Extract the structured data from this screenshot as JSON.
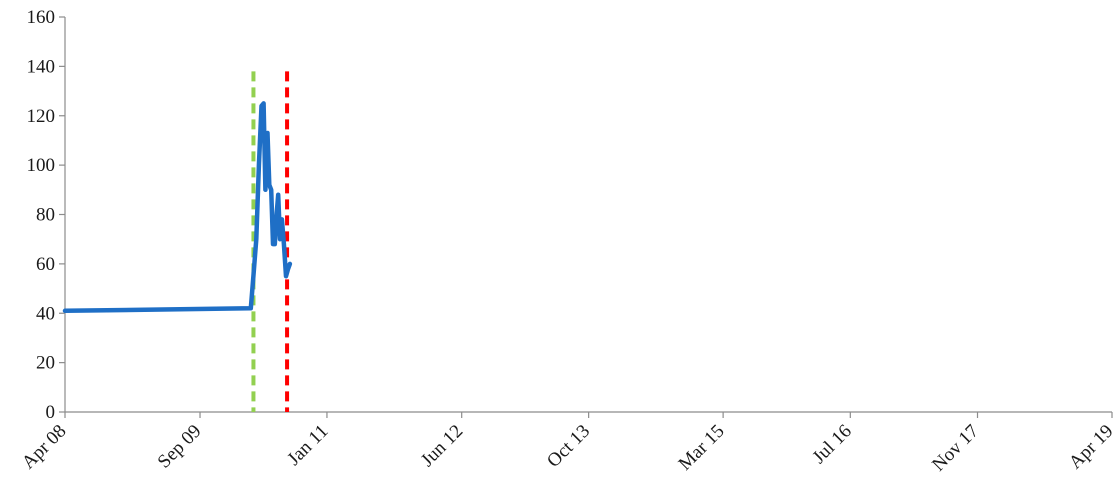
{
  "chart_data": {
    "type": "line",
    "title": "",
    "xlabel": "",
    "ylabel": "",
    "ylim": [
      0,
      160
    ],
    "y_ticks": [
      0,
      20,
      40,
      60,
      80,
      100,
      120,
      140,
      160
    ],
    "x_range": [
      "2008-04-01",
      "2019-04-01"
    ],
    "x_ticks": [
      {
        "date": "2008-04-01",
        "label": "Apr 08"
      },
      {
        "date": "2009-09-01",
        "label": "Sep 09"
      },
      {
        "date": "2011-01-01",
        "label": "Jan 11"
      },
      {
        "date": "2012-06-01",
        "label": "Jun 12"
      },
      {
        "date": "2013-10-01",
        "label": "Oct 13"
      },
      {
        "date": "2015-03-01",
        "label": "Mar 15"
      },
      {
        "date": "2016-07-01",
        "label": "Jul 16"
      },
      {
        "date": "2017-11-01",
        "label": "Nov 17"
      },
      {
        "date": "2019-04-01",
        "label": "Apr 19"
      }
    ],
    "grid": false,
    "legend": "none",
    "series": [
      {
        "color": "#1f6fc6",
        "points": [
          [
            "2008-04-01",
            41
          ],
          [
            "2010-03-15",
            42
          ],
          [
            "2010-03-25",
            55
          ],
          [
            "2010-04-05",
            70
          ],
          [
            "2010-04-15",
            100
          ],
          [
            "2010-04-25",
            124
          ],
          [
            "2010-05-03",
            125
          ],
          [
            "2010-05-10",
            90
          ],
          [
            "2010-05-18",
            113
          ],
          [
            "2010-05-25",
            92
          ],
          [
            "2010-06-01",
            90
          ],
          [
            "2010-06-08",
            68
          ],
          [
            "2010-06-15",
            68
          ],
          [
            "2010-06-22",
            80
          ],
          [
            "2010-06-28",
            88
          ],
          [
            "2010-07-05",
            70
          ],
          [
            "2010-07-12",
            78
          ],
          [
            "2010-07-20",
            68
          ],
          [
            "2010-07-28",
            55
          ],
          [
            "2010-08-05",
            58
          ],
          [
            "2010-08-12",
            60
          ]
        ]
      }
    ],
    "vertical_lines": [
      {
        "date": "2010-03-25",
        "color": "#92d050",
        "top_value": 138
      },
      {
        "date": "2010-08-01",
        "color": "#ff0000",
        "top_value": 138
      }
    ]
  }
}
